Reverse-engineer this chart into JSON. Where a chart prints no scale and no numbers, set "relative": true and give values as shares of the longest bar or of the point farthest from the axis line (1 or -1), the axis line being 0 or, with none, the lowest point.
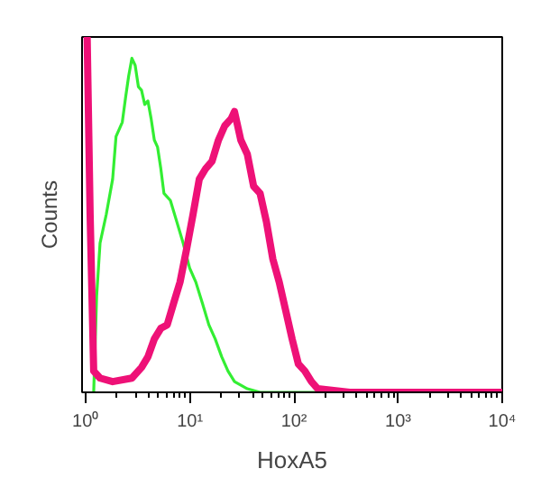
{
  "chart_data": {
    "type": "line",
    "xlabel": "HoxA5",
    "ylabel": "Counts",
    "relative": true,
    "log": "x",
    "xlim": [
      0.92,
      10000
    ],
    "xticks": [
      {
        "value": 1,
        "label": "10⁰"
      },
      {
        "value": 10,
        "label": "10¹"
      },
      {
        "value": 100,
        "label": "10²"
      },
      {
        "value": 1000,
        "label": "10³"
      },
      {
        "value": 10000,
        "label": "10⁴"
      }
    ],
    "tick_labels": "x",
    "grid": false,
    "line_style": "solid",
    "marker": "none",
    "series": [
      {
        "color": "#33ee33",
        "x": [
          1.19,
          1.27,
          1.37,
          1.57,
          1.81,
          1.95,
          2.24,
          2.41,
          2.58,
          2.77,
          2.98,
          3.2,
          3.43,
          3.68,
          3.95,
          4.24,
          4.55,
          4.89,
          5.25,
          5.63,
          6.49,
          7.48,
          8.61,
          9.93,
          11.4,
          13.2,
          15.2,
          17.5,
          20.2,
          23.2,
          26.8,
          35.6,
          47.2,
          147,
          1416,
          10000
        ],
        "values": [
          0,
          0.27,
          0.42,
          0.5,
          0.6,
          0.72,
          0.76,
          0.83,
          0.89,
          0.94,
          0.92,
          0.86,
          0.85,
          0.81,
          0.82,
          0.77,
          0.71,
          0.69,
          0.63,
          0.56,
          0.54,
          0.48,
          0.42,
          0.35,
          0.31,
          0.25,
          0.19,
          0.15,
          0.1,
          0.06,
          0.03,
          0.01,
          0,
          0,
          0,
          0
        ]
      },
      {
        "color": "#ee1177",
        "x": [
          0.96,
          1.03,
          1.1,
          1.19,
          1.37,
          1.81,
          2.77,
          3.43,
          3.95,
          4.55,
          5.25,
          6.05,
          6.96,
          8.03,
          9.25,
          10.7,
          12.3,
          14.2,
          16.3,
          18.8,
          21.6,
          24.9,
          26.8,
          30.8,
          35.6,
          40.9,
          47.2,
          54.3,
          62.6,
          72.1,
          83.2,
          95.9,
          110,
          127,
          147,
          169,
          343,
          10000
        ],
        "values": [
          1,
          1,
          0.5,
          0.06,
          0.04,
          0.03,
          0.04,
          0.07,
          0.1,
          0.15,
          0.18,
          0.19,
          0.25,
          0.31,
          0.4,
          0.5,
          0.6,
          0.63,
          0.65,
          0.71,
          0.75,
          0.77,
          0.79,
          0.71,
          0.67,
          0.58,
          0.56,
          0.48,
          0.375,
          0.31,
          0.23,
          0.15,
          0.08,
          0.06,
          0.03,
          0.01,
          0,
          0
        ]
      }
    ]
  }
}
